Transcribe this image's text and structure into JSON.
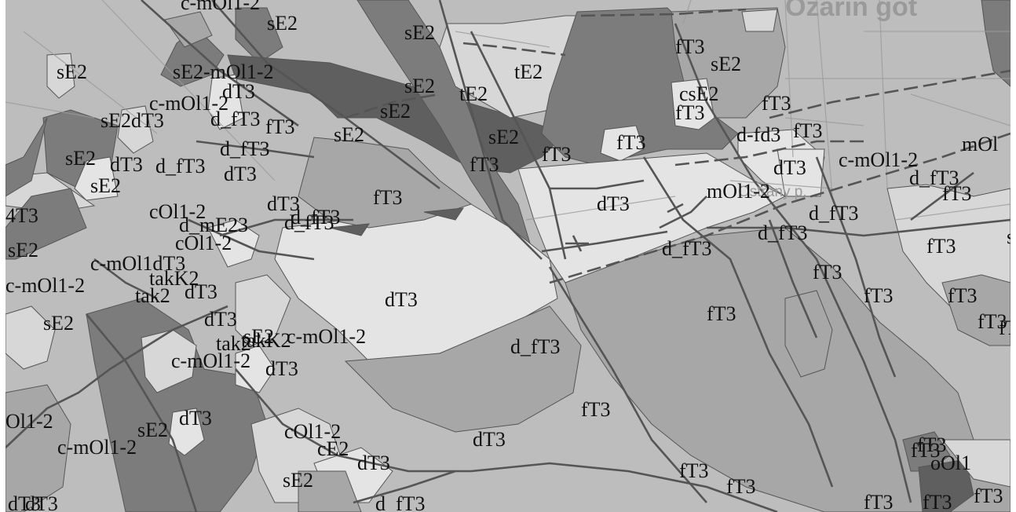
{
  "map": {
    "colors": {
      "base": "#bdbdbd",
      "light": "#d7d7d7",
      "lightest": "#e4e4e4",
      "medium": "#a7a7a7",
      "dark": "#7c7c7c",
      "darker": "#5f5f5f",
      "line": "#555555",
      "road": "#9a9a9a",
      "frame": "#ffffff"
    },
    "background_text": {
      "town_name": "Ozarin got",
      "village_name": "Ostrany p."
    },
    "unit_labels": [
      "c-mOl1-2",
      "sE2",
      "sE2",
      "sE2",
      "sE2-mOl1-2",
      "dT3",
      "c-mOl1-2",
      "d_fT3",
      "fT3",
      "sE2",
      "tE2",
      "tE2",
      "sE2",
      "sE2",
      "fT3",
      "sE2",
      "csE2",
      "fT3",
      "fT3",
      "sE2dT3",
      "sE2",
      "d_fT3",
      "dT3",
      "d_fT3",
      "dT3",
      "sE2",
      "dT3",
      "d_fT3",
      "sE2",
      "fT3",
      "fT3",
      "fT3",
      "fT3",
      "d-fd3",
      "fT3",
      "mOl",
      "c-mOl1-2",
      "d_fT3",
      "dT3",
      "fT3",
      "d_fT3",
      "sE2",
      "fT3",
      "dT3",
      "mOl1-2",
      "4T3",
      "cOl1-2",
      "d_mE23",
      "d_fT3",
      "d_fT3",
      "sE2",
      "cOl1-2",
      "fT3",
      "d_fT3",
      "c-mOl1dT3",
      "fT3",
      "c-mOl1-2",
      "takK2",
      "dT3",
      "fT3",
      "dT3",
      "fT3",
      "fT3",
      "tak2",
      "dT3",
      "tak2",
      "sE2",
      "dT3",
      "d_fT3",
      "takK2",
      "sE2",
      "c-mOl1-2",
      "c-mOl1-2",
      "dT3",
      "fT3",
      "Ol1-2",
      "sE2",
      "dT3",
      "fT3",
      "c-mOl1-2",
      "cOl1-2",
      "fT3",
      "cE2",
      "dT3",
      "fT3",
      "fT3",
      "sE2",
      "fT3",
      "dT3",
      "d_fT3",
      "fT3",
      "fT3",
      "oOl1",
      "fT3",
      "dT3"
    ]
  }
}
